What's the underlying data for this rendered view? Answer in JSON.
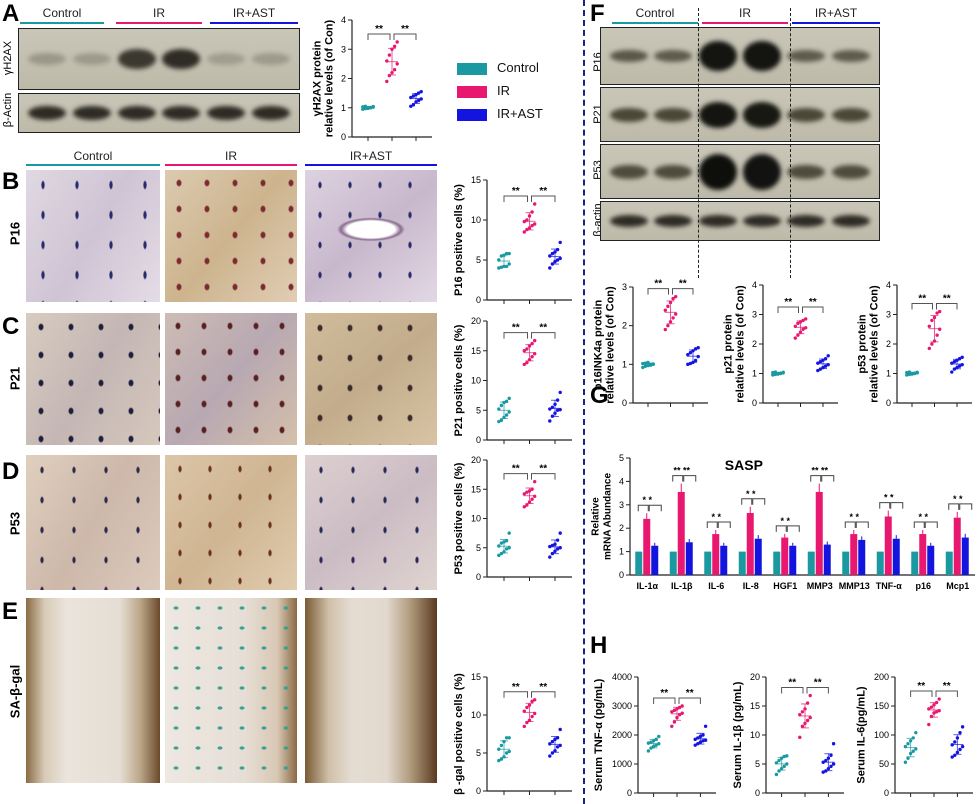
{
  "colors": {
    "control": "#1a9aa0",
    "ir": "#e8176f",
    "ast": "#1414e0"
  },
  "panels": {
    "A": "A",
    "B": "B",
    "C": "C",
    "D": "D",
    "E": "E",
    "F": "F",
    "G": "G",
    "H": "H"
  },
  "groups": [
    "Control",
    "IR",
    "IR+AST"
  ],
  "blotA": {
    "labels": [
      "γH2AX",
      "β-Actin"
    ]
  },
  "blotF": {
    "labels": [
      "P16",
      "P21",
      "P53",
      "β-actin"
    ]
  },
  "rows": [
    "P16",
    "P21",
    "P53",
    "SA-β-gal"
  ],
  "legend": [
    {
      "label": "Control",
      "color": "#1a9aa0"
    },
    {
      "label": "IR",
      "color": "#e8176f"
    },
    {
      "label": "IR+AST",
      "color": "#1414e0"
    }
  ],
  "chart_data": [
    {
      "id": "A",
      "type": "scatter",
      "ylabel": [
        "γH2AX protein",
        "relative levels (of Con)"
      ],
      "ylim": [
        0,
        4
      ],
      "yticks": [
        0,
        1,
        2,
        3,
        4
      ],
      "sig": [
        "**",
        "**"
      ],
      "series": [
        {
          "name": "Control",
          "values": [
            0.95,
            0.97,
            1.0,
            1.0,
            1.02,
            1.03,
            1.05,
            0.98,
            1.01,
            1.04
          ]
        },
        {
          "name": "IR",
          "values": [
            1.9,
            2.1,
            2.2,
            2.3,
            2.5,
            2.6,
            2.8,
            3.0,
            3.1,
            3.25
          ]
        },
        {
          "name": "IR+AST",
          "values": [
            1.05,
            1.1,
            1.2,
            1.25,
            1.3,
            1.35,
            1.4,
            1.45,
            1.5,
            1.55
          ]
        }
      ]
    },
    {
      "id": "B",
      "type": "scatter",
      "ylabel": [
        "P16 positive cells (%)"
      ],
      "ylim": [
        0,
        15
      ],
      "yticks": [
        0,
        5,
        10,
        15
      ],
      "sig": [
        "**",
        "**"
      ],
      "series": [
        {
          "name": "Control",
          "values": [
            4,
            4.1,
            4.2,
            4.2,
            4.5,
            5,
            5.5,
            5.6,
            5.8,
            5.8
          ]
        },
        {
          "name": "IR",
          "values": [
            8.5,
            8.8,
            9,
            9.3,
            9.5,
            9.8,
            10,
            10.5,
            11,
            12
          ]
        },
        {
          "name": "IR+AST",
          "values": [
            4,
            4.5,
            4.8,
            5,
            5.2,
            5.5,
            5.8,
            6,
            6.3,
            7.2
          ]
        }
      ]
    },
    {
      "id": "C",
      "type": "scatter",
      "ylabel": [
        "P21 positive cells (%)"
      ],
      "ylim": [
        0,
        20
      ],
      "yticks": [
        0,
        5,
        10,
        15,
        20
      ],
      "sig": [
        "**",
        "**"
      ],
      "series": [
        {
          "name": "Control",
          "values": [
            3.1,
            3.3,
            3.8,
            4.2,
            4.7,
            5.2,
            5.8,
            6.3,
            6.5,
            7
          ]
        },
        {
          "name": "IR",
          "values": [
            12.7,
            13,
            13.5,
            14,
            14.5,
            15,
            15.3,
            15.8,
            16.2,
            16.7
          ]
        },
        {
          "name": "IR+AST",
          "values": [
            3.2,
            4,
            4.5,
            5,
            5.1,
            5.2,
            5.5,
            6,
            6.7,
            8
          ]
        }
      ]
    },
    {
      "id": "D",
      "type": "scatter",
      "ylabel": [
        "P53 positive cells (%)"
      ],
      "ylim": [
        0,
        20
      ],
      "yticks": [
        0,
        5,
        10,
        15,
        20
      ],
      "sig": [
        "**",
        "**"
      ],
      "series": [
        {
          "name": "Control",
          "values": [
            3.7,
            4,
            4.3,
            4.8,
            5,
            5.3,
            5.8,
            6,
            6.2,
            7.5
          ]
        },
        {
          "name": "IR",
          "values": [
            12,
            12.3,
            12.8,
            13.3,
            13.8,
            14.2,
            14.5,
            14.7,
            15,
            16.3
          ]
        },
        {
          "name": "IR+AST",
          "values": [
            3.4,
            4,
            4.4,
            4.8,
            5,
            5.2,
            5.4,
            5.6,
            6.3,
            7.5
          ]
        }
      ]
    },
    {
      "id": "E",
      "type": "scatter",
      "ylabel": [
        "β -gal positive cells (%)"
      ],
      "ylim": [
        0,
        15
      ],
      "yticks": [
        0,
        5,
        10,
        15
      ],
      "sig": [
        "**",
        "**"
      ],
      "series": [
        {
          "name": "Control",
          "values": [
            4,
            4.2,
            4.5,
            5,
            5.2,
            5.5,
            6,
            6.5,
            7,
            7
          ]
        },
        {
          "name": "IR",
          "values": [
            8.5,
            9,
            9.3,
            9.8,
            10.2,
            10.5,
            11,
            11.3,
            11.8,
            12
          ]
        },
        {
          "name": "IR+AST",
          "values": [
            4.6,
            5,
            5.3,
            5.8,
            6,
            6.2,
            6.5,
            6.8,
            7,
            8.1
          ]
        }
      ]
    },
    {
      "id": "F1",
      "type": "scatter",
      "ylabel": [
        "p16INK4a protein",
        "relative levels (of Con)"
      ],
      "ylim": [
        0,
        3
      ],
      "yticks": [
        0,
        1,
        2,
        3
      ],
      "sig": [
        "**",
        "**"
      ],
      "series": [
        {
          "name": "Control",
          "values": [
            0.92,
            0.95,
            0.97,
            1.0,
            1.0,
            1.02,
            1.03,
            1.05,
            0.98,
            1.01
          ]
        },
        {
          "name": "IR",
          "values": [
            1.9,
            2,
            2.1,
            2.2,
            2.3,
            2.4,
            2.5,
            2.6,
            2.7,
            2.75
          ]
        },
        {
          "name": "IR+AST",
          "values": [
            1.0,
            1.02,
            1.05,
            1.1,
            1.2,
            1.25,
            1.3,
            1.35,
            1.4,
            1.43
          ]
        }
      ]
    },
    {
      "id": "F2",
      "type": "scatter",
      "ylabel": [
        "p21 protein",
        "relative levels (of Con)"
      ],
      "ylim": [
        0,
        4
      ],
      "yticks": [
        0,
        1,
        2,
        3,
        4
      ],
      "sig": [
        "**",
        "**"
      ],
      "series": [
        {
          "name": "Control",
          "values": [
            0.95,
            0.97,
            1.0,
            1.0,
            1.02,
            1.03,
            1.05,
            0.98,
            1.01,
            1.04
          ]
        },
        {
          "name": "IR",
          "values": [
            2.2,
            2.3,
            2.4,
            2.5,
            2.55,
            2.6,
            2.7,
            2.75,
            2.8,
            2.85
          ]
        },
        {
          "name": "IR+AST",
          "values": [
            1.1,
            1.15,
            1.2,
            1.25,
            1.3,
            1.35,
            1.4,
            1.45,
            1.5,
            1.6
          ]
        }
      ]
    },
    {
      "id": "F3",
      "type": "scatter",
      "ylabel": [
        "p53 protein",
        "relative levels (of Con)"
      ],
      "ylim": [
        0,
        4
      ],
      "yticks": [
        0,
        1,
        2,
        3,
        4
      ],
      "sig": [
        "**",
        "**"
      ],
      "series": [
        {
          "name": "Control",
          "values": [
            0.95,
            0.97,
            1.0,
            1.0,
            1.02,
            1.03,
            1.05,
            0.98,
            1.01,
            1.04
          ]
        },
        {
          "name": "IR",
          "values": [
            1.85,
            2,
            2.1,
            2.3,
            2.5,
            2.6,
            2.8,
            2.9,
            3.05,
            3.1
          ]
        },
        {
          "name": "IR+AST",
          "values": [
            1.05,
            1.15,
            1.2,
            1.25,
            1.3,
            1.35,
            1.4,
            1.45,
            1.5,
            1.55
          ]
        }
      ]
    },
    {
      "id": "G",
      "type": "bar",
      "title": "SASP",
      "ylabel": [
        "Relative",
        "mRNA Abundance"
      ],
      "ylim": [
        0,
        5
      ],
      "yticks": [
        0,
        1,
        2,
        3,
        4,
        5
      ],
      "categories": [
        "IL-1α",
        "IL-1β",
        "IL-6",
        "IL-8",
        "HGF1",
        "MMP3",
        "MMP13",
        "TNF-α",
        "p16",
        "Mcp1"
      ],
      "sig": [
        "* *",
        "**  **",
        "* *",
        "* *",
        "* *",
        "**  **",
        "* *",
        "* *",
        "* *",
        "* *"
      ],
      "series": [
        {
          "name": "Control",
          "values": [
            1,
            1,
            1,
            1,
            1,
            1,
            1,
            1,
            1,
            1
          ]
        },
        {
          "name": "IR",
          "values": [
            2.4,
            3.55,
            1.75,
            2.65,
            1.6,
            3.55,
            1.75,
            2.5,
            1.75,
            2.45
          ]
        },
        {
          "name": "IR+AST",
          "values": [
            1.25,
            1.4,
            1.25,
            1.55,
            1.25,
            1.3,
            1.5,
            1.55,
            1.25,
            1.6
          ]
        }
      ]
    },
    {
      "id": "H1",
      "type": "scatter",
      "ylabel": [
        "Serum TNF-α (pg/mL)"
      ],
      "ylim": [
        0,
        4000
      ],
      "yticks": [
        0,
        1000,
        2000,
        3000,
        4000
      ],
      "sig": [
        "**",
        "**"
      ],
      "series": [
        {
          "name": "Control",
          "values": [
            1450,
            1550,
            1600,
            1650,
            1700,
            1720,
            1750,
            1800,
            1850,
            1950
          ]
        },
        {
          "name": "IR",
          "values": [
            2300,
            2450,
            2600,
            2700,
            2750,
            2800,
            2850,
            2900,
            2950,
            3000
          ]
        },
        {
          "name": "IR+AST",
          "values": [
            1650,
            1700,
            1750,
            1800,
            1820,
            1850,
            1900,
            1950,
            2000,
            2300
          ]
        }
      ]
    },
    {
      "id": "H2",
      "type": "scatter",
      "ylabel": [
        "Serum IL-1β (pg/mL)"
      ],
      "ylim": [
        0,
        20
      ],
      "yticks": [
        0,
        5,
        10,
        15,
        20
      ],
      "sig": [
        "**",
        "**"
      ],
      "series": [
        {
          "name": "Control",
          "values": [
            3.2,
            3.8,
            4.2,
            4.6,
            5,
            5.2,
            5.6,
            6,
            6.3,
            6.4
          ]
        },
        {
          "name": "IR",
          "values": [
            9.6,
            11.5,
            12,
            12.5,
            13,
            13.5,
            14,
            14.5,
            15.5,
            16.8
          ]
        },
        {
          "name": "IR+AST",
          "values": [
            3.6,
            3.8,
            4.2,
            4.6,
            5,
            5.3,
            5.6,
            6,
            6.5,
            8.5
          ]
        }
      ]
    },
    {
      "id": "H3",
      "type": "scatter",
      "ylabel": [
        "Serum IL-6(pg/mL)"
      ],
      "ylim": [
        0,
        200
      ],
      "yticks": [
        0,
        50,
        100,
        150,
        200
      ],
      "sig": [
        "**",
        "**"
      ],
      "series": [
        {
          "name": "Control",
          "values": [
            53,
            60,
            68,
            72,
            76,
            80,
            85,
            90,
            95,
            104
          ]
        },
        {
          "name": "IR",
          "values": [
            118,
            132,
            138,
            140,
            142,
            145,
            148,
            152,
            156,
            162
          ]
        },
        {
          "name": "IR+AST",
          "values": [
            62,
            65,
            70,
            75,
            80,
            83,
            88,
            95,
            104,
            114
          ]
        }
      ]
    }
  ]
}
